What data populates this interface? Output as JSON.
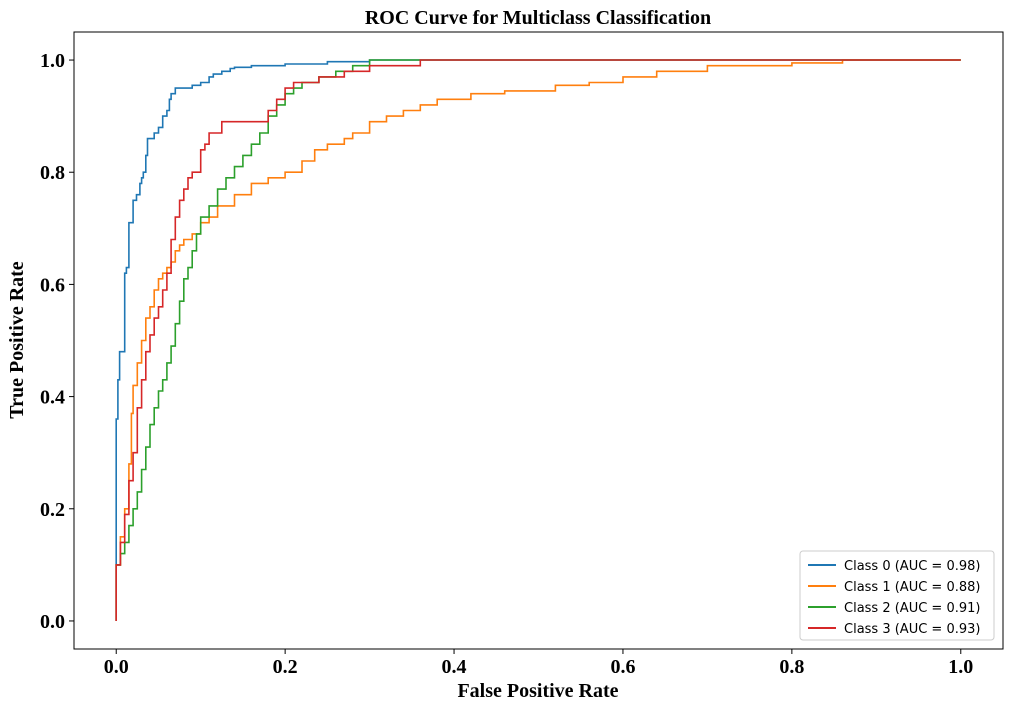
{
  "chart_data": {
    "type": "line",
    "title": "ROC Curve for Multiclass Classification",
    "xlabel": "False Positive Rate",
    "ylabel": "True Positive Rate",
    "xlim": [
      -0.05,
      1.05
    ],
    "ylim": [
      -0.05,
      1.05
    ],
    "xticks": [
      0.0,
      0.2,
      0.4,
      0.6,
      0.8,
      1.0
    ],
    "xtick_labels": [
      "0.0",
      "0.2",
      "0.4",
      "0.6",
      "0.8",
      "1.0"
    ],
    "yticks": [
      0.0,
      0.2,
      0.4,
      0.6,
      0.8,
      1.0
    ],
    "ytick_labels": [
      "0.0",
      "0.2",
      "0.4",
      "0.6",
      "0.8",
      "1.0"
    ],
    "grid": false,
    "legend_position": "lower-right",
    "series": [
      {
        "name": "Class 0 (AUC = 0.98)",
        "color": "#1f77b4",
        "points": [
          [
            0.0,
            0.0
          ],
          [
            0.0,
            0.34
          ],
          [
            0.002,
            0.36
          ],
          [
            0.004,
            0.43
          ],
          [
            0.006,
            0.48
          ],
          [
            0.01,
            0.48
          ],
          [
            0.01,
            0.6
          ],
          [
            0.012,
            0.62
          ],
          [
            0.015,
            0.63
          ],
          [
            0.015,
            0.7
          ],
          [
            0.02,
            0.71
          ],
          [
            0.02,
            0.73
          ],
          [
            0.024,
            0.75
          ],
          [
            0.028,
            0.76
          ],
          [
            0.03,
            0.78
          ],
          [
            0.032,
            0.79
          ],
          [
            0.035,
            0.8
          ],
          [
            0.037,
            0.83
          ],
          [
            0.04,
            0.86
          ],
          [
            0.045,
            0.86
          ],
          [
            0.05,
            0.87
          ],
          [
            0.055,
            0.88
          ],
          [
            0.06,
            0.9
          ],
          [
            0.063,
            0.91
          ],
          [
            0.065,
            0.93
          ],
          [
            0.07,
            0.94
          ],
          [
            0.08,
            0.95
          ],
          [
            0.09,
            0.95
          ],
          [
            0.1,
            0.955
          ],
          [
            0.11,
            0.96
          ],
          [
            0.115,
            0.97
          ],
          [
            0.125,
            0.975
          ],
          [
            0.135,
            0.98
          ],
          [
            0.14,
            0.985
          ],
          [
            0.16,
            0.987
          ],
          [
            0.2,
            0.99
          ],
          [
            0.25,
            0.993
          ],
          [
            0.3,
            0.997
          ],
          [
            0.35,
            1.0
          ],
          [
            1.0,
            1.0
          ]
        ]
      },
      {
        "name": "Class 1 (AUC = 0.88)",
        "color": "#ff7f0e",
        "points": [
          [
            0.0,
            0.0
          ],
          [
            0.0,
            0.05
          ],
          [
            0.005,
            0.1
          ],
          [
            0.01,
            0.15
          ],
          [
            0.015,
            0.2
          ],
          [
            0.018,
            0.28
          ],
          [
            0.02,
            0.37
          ],
          [
            0.025,
            0.42
          ],
          [
            0.03,
            0.46
          ],
          [
            0.035,
            0.5
          ],
          [
            0.04,
            0.54
          ],
          [
            0.045,
            0.56
          ],
          [
            0.05,
            0.59
          ],
          [
            0.055,
            0.61
          ],
          [
            0.06,
            0.62
          ],
          [
            0.065,
            0.63
          ],
          [
            0.07,
            0.64
          ],
          [
            0.075,
            0.66
          ],
          [
            0.08,
            0.67
          ],
          [
            0.09,
            0.68
          ],
          [
            0.1,
            0.69
          ],
          [
            0.11,
            0.71
          ],
          [
            0.12,
            0.72
          ],
          [
            0.14,
            0.74
          ],
          [
            0.16,
            0.76
          ],
          [
            0.18,
            0.78
          ],
          [
            0.2,
            0.79
          ],
          [
            0.22,
            0.8
          ],
          [
            0.235,
            0.82
          ],
          [
            0.25,
            0.84
          ],
          [
            0.27,
            0.85
          ],
          [
            0.28,
            0.86
          ],
          [
            0.3,
            0.87
          ],
          [
            0.32,
            0.89
          ],
          [
            0.34,
            0.9
          ],
          [
            0.36,
            0.91
          ],
          [
            0.38,
            0.92
          ],
          [
            0.42,
            0.93
          ],
          [
            0.46,
            0.94
          ],
          [
            0.52,
            0.945
          ],
          [
            0.56,
            0.955
          ],
          [
            0.6,
            0.96
          ],
          [
            0.64,
            0.97
          ],
          [
            0.7,
            0.98
          ],
          [
            0.8,
            0.99
          ],
          [
            0.86,
            0.995
          ],
          [
            0.9,
            1.0
          ],
          [
            1.0,
            1.0
          ]
        ]
      },
      {
        "name": "Class 2 (AUC = 0.91)",
        "color": "#2ca02c",
        "points": [
          [
            0.0,
            0.0
          ],
          [
            0.0,
            0.06
          ],
          [
            0.005,
            0.1
          ],
          [
            0.01,
            0.12
          ],
          [
            0.015,
            0.14
          ],
          [
            0.02,
            0.17
          ],
          [
            0.025,
            0.2
          ],
          [
            0.03,
            0.23
          ],
          [
            0.035,
            0.27
          ],
          [
            0.04,
            0.31
          ],
          [
            0.045,
            0.35
          ],
          [
            0.05,
            0.38
          ],
          [
            0.055,
            0.41
          ],
          [
            0.06,
            0.43
          ],
          [
            0.065,
            0.46
          ],
          [
            0.07,
            0.49
          ],
          [
            0.075,
            0.53
          ],
          [
            0.08,
            0.57
          ],
          [
            0.085,
            0.61
          ],
          [
            0.09,
            0.63
          ],
          [
            0.095,
            0.66
          ],
          [
            0.1,
            0.69
          ],
          [
            0.11,
            0.72
          ],
          [
            0.12,
            0.74
          ],
          [
            0.13,
            0.77
          ],
          [
            0.14,
            0.79
          ],
          [
            0.15,
            0.81
          ],
          [
            0.16,
            0.83
          ],
          [
            0.17,
            0.85
          ],
          [
            0.18,
            0.87
          ],
          [
            0.19,
            0.9
          ],
          [
            0.2,
            0.92
          ],
          [
            0.21,
            0.94
          ],
          [
            0.22,
            0.95
          ],
          [
            0.24,
            0.96
          ],
          [
            0.26,
            0.97
          ],
          [
            0.28,
            0.98
          ],
          [
            0.3,
            0.99
          ],
          [
            0.33,
            1.0
          ],
          [
            1.0,
            1.0
          ]
        ]
      },
      {
        "name": "Class 3 (AUC = 0.93)",
        "color": "#d62728",
        "points": [
          [
            0.0,
            0.0
          ],
          [
            0.0,
            0.05
          ],
          [
            0.005,
            0.1
          ],
          [
            0.01,
            0.14
          ],
          [
            0.015,
            0.19
          ],
          [
            0.02,
            0.25
          ],
          [
            0.025,
            0.3
          ],
          [
            0.03,
            0.38
          ],
          [
            0.035,
            0.43
          ],
          [
            0.04,
            0.48
          ],
          [
            0.045,
            0.51
          ],
          [
            0.05,
            0.54
          ],
          [
            0.055,
            0.56
          ],
          [
            0.06,
            0.59
          ],
          [
            0.065,
            0.62
          ],
          [
            0.07,
            0.68
          ],
          [
            0.075,
            0.72
          ],
          [
            0.08,
            0.75
          ],
          [
            0.085,
            0.77
          ],
          [
            0.09,
            0.79
          ],
          [
            0.1,
            0.8
          ],
          [
            0.105,
            0.84
          ],
          [
            0.11,
            0.85
          ],
          [
            0.125,
            0.87
          ],
          [
            0.14,
            0.89
          ],
          [
            0.18,
            0.89
          ],
          [
            0.19,
            0.91
          ],
          [
            0.2,
            0.93
          ],
          [
            0.21,
            0.95
          ],
          [
            0.24,
            0.96
          ],
          [
            0.27,
            0.97
          ],
          [
            0.3,
            0.98
          ],
          [
            0.36,
            0.99
          ],
          [
            0.58,
            1.0
          ],
          [
            1.0,
            1.0
          ]
        ]
      }
    ]
  }
}
